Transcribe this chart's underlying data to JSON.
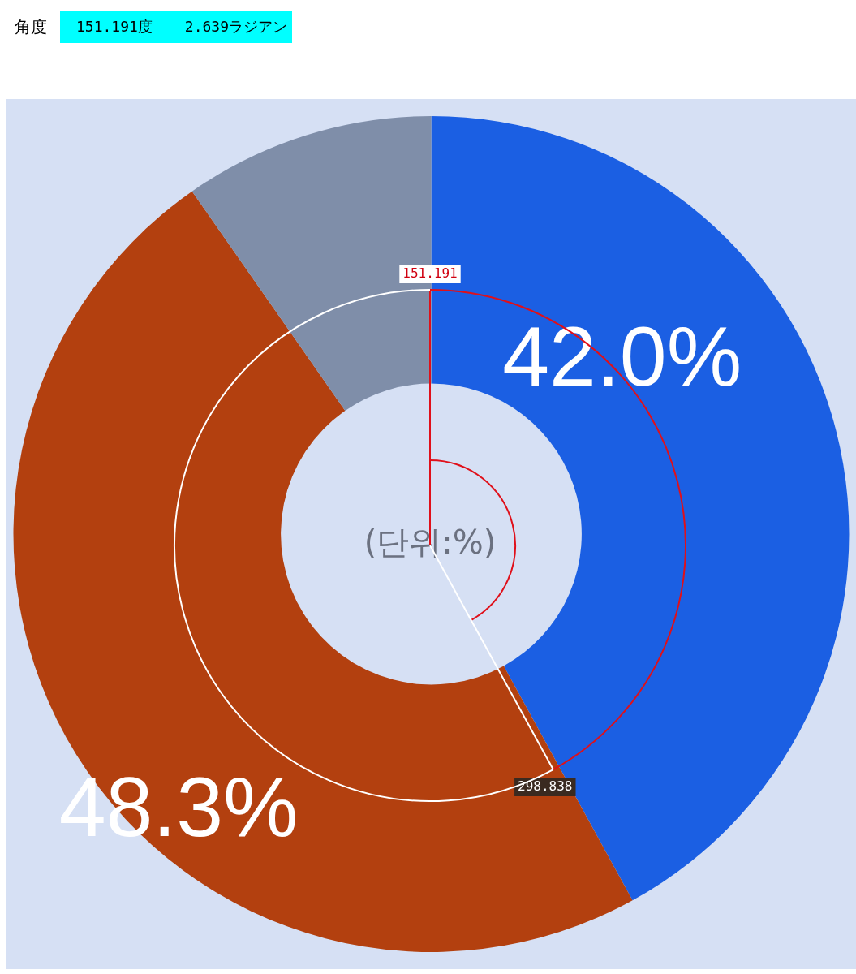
{
  "chart_data": {
    "type": "donut",
    "categories": [
      null,
      null,
      null
    ],
    "values": [
      42.0,
      48.3,
      9.7
    ],
    "colors": [
      "#1b5fe3",
      "#b3400f",
      "#7f8ea9"
    ],
    "value_labels": [
      "42.0%",
      "48.3%",
      null
    ],
    "legend": false,
    "annotations": [
      "角度",
      "151.191度",
      "2.639ラジアン",
      "(단위:%)",
      "151.191",
      "298.838"
    ]
  }
}
